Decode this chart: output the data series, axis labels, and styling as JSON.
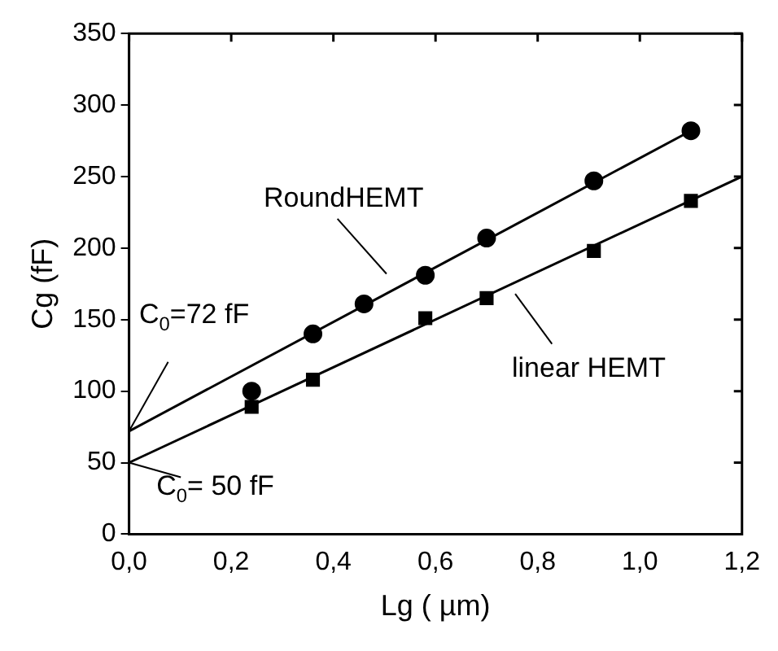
{
  "chart_data": {
    "type": "scatter",
    "xlabel": "Lg ( µm)",
    "ylabel": "Cg (fF)",
    "xlim": [
      0,
      1.2
    ],
    "ylim": [
      0,
      350
    ],
    "xticks": [
      {
        "value": 0,
        "label": "0,0"
      },
      {
        "value": 0.2,
        "label": "0,2"
      },
      {
        "value": 0.4,
        "label": "0,4"
      },
      {
        "value": 0.6,
        "label": "0,6"
      },
      {
        "value": 0.8,
        "label": "0,8"
      },
      {
        "value": 1.0,
        "label": "1,0"
      },
      {
        "value": 1.2,
        "label": "1,2"
      }
    ],
    "yticks": [
      0,
      50,
      100,
      150,
      200,
      250,
      300,
      350
    ],
    "grid": false,
    "legend": false,
    "series": [
      {
        "marker": "circle",
        "color": "#000000",
        "x": [
          0.24,
          0.36,
          0.46,
          0.58,
          0.7,
          0.91,
          1.1
        ],
        "values": [
          100,
          140,
          161,
          181,
          207,
          247,
          282
        ]
      },
      {
        "marker": "square",
        "color": "#000000",
        "x": [
          0.24,
          0.36,
          0.58,
          0.7,
          0.91,
          1.1
        ],
        "values": [
          89,
          108,
          151,
          165,
          198,
          233
        ]
      },
      {
        "type": "line",
        "marker": "none",
        "color": "#000000",
        "x": [
          0,
          1.1
        ],
        "values": [
          72,
          282
        ]
      },
      {
        "type": "line",
        "marker": "none",
        "color": "#000000",
        "x": [
          0,
          1.2
        ],
        "values": [
          50,
          250
        ]
      }
    ],
    "annotations": [
      "RoundHEMT",
      "linear HEMT",
      {
        "text": "C$_{0}$=72 fF",
        "x": 0,
        "y": 72
      },
      {
        "text": "C$_{0}$= 50 fF",
        "x": 0,
        "y": 50
      }
    ]
  }
}
